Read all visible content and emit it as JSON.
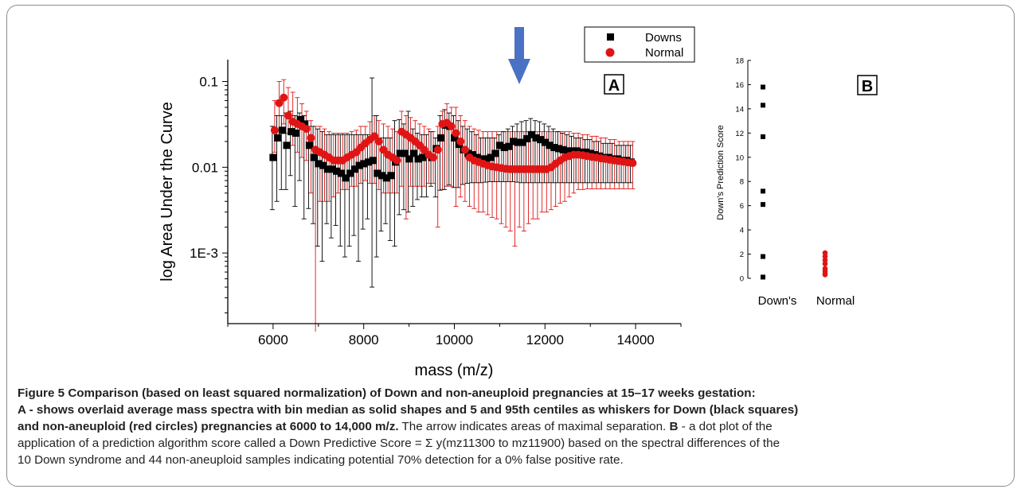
{
  "colors": {
    "downs": "#000000",
    "normal": "#e01414",
    "arrow": "#4a72c4",
    "accent_red": "#e01414"
  },
  "icons": {
    "arrow": "down-arrow-icon"
  },
  "chart_data": [
    {
      "type": "scatter",
      "panel_label": "A",
      "xlabel": "mass (m/z)",
      "ylabel": "log Area Under the Curve",
      "yscale": "log",
      "xlim": [
        5000,
        15000
      ],
      "ylim": [
        0.00015,
        0.18
      ],
      "x_ticks": [
        6000,
        8000,
        10000,
        12000,
        14000
      ],
      "x_tick_labels": [
        "6000",
        "8000",
        "10000",
        "12000",
        "14000"
      ],
      "y_ticks": [
        0.001,
        0.01,
        0.1
      ],
      "y_tick_labels": [
        "1E-3",
        "0.01",
        "0.1"
      ],
      "legend": {
        "position": "top-right",
        "entries": [
          "Downs",
          "Normal"
        ]
      },
      "arrow_at_x": 11300,
      "grid": false,
      "series": [
        {
          "name": "Downs",
          "marker": "square",
          "x": [
            6000,
            6100,
            6200,
            6300,
            6400,
            6500,
            6600,
            6700,
            6800,
            6900,
            7000,
            7100,
            7200,
            7300,
            7400,
            7500,
            7600,
            7700,
            7800,
            7900,
            8000,
            8100,
            8200,
            8300,
            8400,
            8500,
            8600,
            8700,
            8800,
            8900,
            9000,
            9100,
            9200,
            9300,
            9400,
            9500,
            9600,
            9700,
            9800,
            9900,
            10000,
            10100,
            10200,
            10300,
            10400,
            10500,
            10600,
            10700,
            10800,
            10900,
            11000,
            11100,
            11200,
            11300,
            11400,
            11500,
            11600,
            11700,
            11800,
            11900,
            12000,
            12100,
            12200,
            12300,
            12400,
            12500,
            12600,
            12700,
            12800,
            12900,
            13000,
            13100,
            13200,
            13300,
            13400,
            13500,
            13600,
            13700,
            13800,
            13900
          ],
          "median": [
            0.013,
            0.022,
            0.027,
            0.018,
            0.026,
            0.025,
            0.036,
            0.032,
            0.018,
            0.013,
            0.011,
            0.0105,
            0.0095,
            0.0095,
            0.009,
            0.0085,
            0.0075,
            0.0085,
            0.0095,
            0.0105,
            0.011,
            0.0115,
            0.012,
            0.0085,
            0.008,
            0.0075,
            0.008,
            0.0115,
            0.0145,
            0.0145,
            0.0125,
            0.0145,
            0.0125,
            0.013,
            0.014,
            0.013,
            0.0165,
            0.022,
            0.031,
            0.03,
            0.022,
            0.0185,
            0.016,
            0.0145,
            0.014,
            0.013,
            0.0125,
            0.0125,
            0.013,
            0.0145,
            0.018,
            0.017,
            0.0175,
            0.02,
            0.0195,
            0.0195,
            0.0215,
            0.024,
            0.022,
            0.021,
            0.0195,
            0.018,
            0.017,
            0.0165,
            0.016,
            0.0155,
            0.0155,
            0.0155,
            0.015,
            0.015,
            0.0145,
            0.014,
            0.0135,
            0.013,
            0.013,
            0.0125,
            0.0125,
            0.012,
            0.012,
            0.0115
          ],
          "p5": [
            0.0032,
            0.004,
            0.0055,
            0.0055,
            0.008,
            0.0035,
            0.007,
            0.0025,
            0.0033,
            0.0022,
            0.0012,
            0.0008,
            0.0022,
            0.0015,
            0.0021,
            0.0012,
            0.0009,
            0.0012,
            0.0016,
            0.0008,
            0.0019,
            0.0025,
            0.0004,
            0.0009,
            0.0018,
            0.0022,
            0.0014,
            0.0012,
            0.0028,
            0.0032,
            0.003,
            0.0035,
            0.0042,
            0.0045,
            0.0045,
            0.006,
            0.0045,
            0.0054,
            0.0055,
            0.0062,
            0.0058,
            0.0058,
            0.0063,
            0.0065,
            0.0066,
            0.0066,
            0.0066,
            0.0067,
            0.0068,
            0.0068,
            0.0068,
            0.0068,
            0.0068,
            0.0068,
            0.0067,
            0.0066,
            0.0066,
            0.0066,
            0.0066,
            0.0066,
            0.0066,
            0.0066,
            0.0066,
            0.0066,
            0.0066,
            0.0066,
            0.0066,
            0.0066,
            0.0066,
            0.0066,
            0.0066,
            0.0066,
            0.0066,
            0.0066,
            0.0066,
            0.0066,
            0.0066,
            0.0066,
            0.0066,
            0.0066
          ],
          "p95": [
            0.03,
            0.04,
            0.04,
            0.043,
            0.045,
            0.04,
            0.043,
            0.04,
            0.03,
            0.03,
            0.028,
            0.026,
            0.024,
            0.024,
            0.024,
            0.024,
            0.024,
            0.024,
            0.024,
            0.024,
            0.024,
            0.024,
            0.11,
            0.04,
            0.022,
            0.022,
            0.022,
            0.035,
            0.036,
            0.032,
            0.045,
            0.028,
            0.025,
            0.024,
            0.024,
            0.026,
            0.022,
            0.04,
            0.047,
            0.043,
            0.04,
            0.035,
            0.03,
            0.028,
            0.026,
            0.024,
            0.022,
            0.022,
            0.022,
            0.022,
            0.024,
            0.026,
            0.028,
            0.03,
            0.032,
            0.034,
            0.035,
            0.037,
            0.035,
            0.034,
            0.032,
            0.03,
            0.028,
            0.026,
            0.025,
            0.024,
            0.023,
            0.022,
            0.022,
            0.021,
            0.021,
            0.02,
            0.02,
            0.019,
            0.019,
            0.019,
            0.018,
            0.018,
            0.018,
            0.018
          ]
        },
        {
          "name": "Normal",
          "marker": "circle",
          "x": [
            6000,
            6100,
            6200,
            6300,
            6400,
            6500,
            6600,
            6700,
            6800,
            6900,
            7000,
            7100,
            7200,
            7300,
            7400,
            7500,
            7600,
            7700,
            7800,
            7900,
            8000,
            8100,
            8200,
            8300,
            8400,
            8500,
            8600,
            8700,
            8800,
            8900,
            9000,
            9100,
            9200,
            9300,
            9400,
            9500,
            9600,
            9700,
            9800,
            9900,
            10000,
            10100,
            10200,
            10300,
            10400,
            10500,
            10600,
            10700,
            10800,
            10900,
            11000,
            11100,
            11200,
            11300,
            11400,
            11500,
            11600,
            11700,
            11800,
            11900,
            12000,
            12100,
            12200,
            12300,
            12400,
            12500,
            12600,
            12700,
            12800,
            12900,
            13000,
            13100,
            13200,
            13300,
            13400,
            13500,
            13600,
            13700,
            13800,
            13900
          ],
          "median": [
            0.027,
            0.056,
            0.065,
            0.04,
            0.034,
            0.032,
            0.03,
            0.028,
            0.022,
            0.016,
            0.015,
            0.014,
            0.013,
            0.012,
            0.012,
            0.012,
            0.013,
            0.014,
            0.015,
            0.017,
            0.019,
            0.021,
            0.023,
            0.02,
            0.016,
            0.014,
            0.013,
            0.012,
            0.026,
            0.024,
            0.022,
            0.02,
            0.018,
            0.016,
            0.014,
            0.013,
            0.016,
            0.032,
            0.033,
            0.03,
            0.025,
            0.02,
            0.016,
            0.013,
            0.012,
            0.0115,
            0.011,
            0.0105,
            0.0102,
            0.01,
            0.0098,
            0.0096,
            0.0095,
            0.0095,
            0.0095,
            0.0095,
            0.0095,
            0.0095,
            0.0095,
            0.0095,
            0.0095,
            0.01,
            0.011,
            0.012,
            0.013,
            0.0135,
            0.014,
            0.014,
            0.0138,
            0.0135,
            0.0132,
            0.013,
            0.0127,
            0.0125,
            0.0122,
            0.012,
            0.0118,
            0.0116,
            0.0114,
            0.0112
          ],
          "p5": [
            0.015,
            0.022,
            0.032,
            0.025,
            0.018,
            0.015,
            0.013,
            0.012,
            0.005,
            0.00012,
            0.004,
            0.004,
            0.004,
            0.0045,
            0.005,
            0.0055,
            0.0055,
            0.006,
            0.006,
            0.0065,
            0.007,
            0.0065,
            0.0065,
            0.0055,
            0.005,
            0.005,
            0.005,
            0.005,
            0.006,
            0.0025,
            0.006,
            0.006,
            0.006,
            0.006,
            0.0065,
            0.0065,
            0.002,
            0.0055,
            0.006,
            0.006,
            0.0035,
            0.0045,
            0.004,
            0.0035,
            0.0033,
            0.003,
            0.003,
            0.0028,
            0.0026,
            0.0025,
            0.0022,
            0.002,
            0.0018,
            0.0012,
            0.002,
            0.0018,
            0.0022,
            0.0025,
            0.0025,
            0.003,
            0.003,
            0.0032,
            0.0035,
            0.0038,
            0.004,
            0.0045,
            0.005,
            0.0055,
            0.0055,
            0.0056,
            0.0056,
            0.0056,
            0.0056,
            0.0056,
            0.0056,
            0.0056,
            0.0056,
            0.0056,
            0.0056,
            0.0056
          ],
          "p95": [
            0.06,
            0.1,
            0.105,
            0.085,
            0.075,
            0.065,
            0.055,
            0.045,
            0.035,
            0.03,
            0.03,
            0.028,
            0.026,
            0.025,
            0.025,
            0.025,
            0.025,
            0.026,
            0.027,
            0.03,
            0.03,
            0.034,
            0.04,
            0.035,
            0.032,
            0.03,
            0.028,
            0.026,
            0.045,
            0.04,
            0.038,
            0.035,
            0.032,
            0.03,
            0.028,
            0.026,
            0.03,
            0.045,
            0.055,
            0.05,
            0.05,
            0.04,
            0.035,
            0.03,
            0.028,
            0.027,
            0.026,
            0.026,
            0.026,
            0.026,
            0.026,
            0.026,
            0.026,
            0.026,
            0.026,
            0.026,
            0.026,
            0.026,
            0.026,
            0.026,
            0.026,
            0.026,
            0.026,
            0.026,
            0.026,
            0.026,
            0.025,
            0.025,
            0.024,
            0.024,
            0.023,
            0.023,
            0.022,
            0.022,
            0.021,
            0.021,
            0.02,
            0.02,
            0.02,
            0.02
          ]
        }
      ]
    },
    {
      "type": "scatter",
      "panel_label": "B",
      "ylabel": "Down's Prediction Score",
      "ylim": [
        0,
        18
      ],
      "y_ticks": [
        0,
        2,
        4,
        6,
        8,
        10,
        12,
        14,
        16,
        18
      ],
      "y_tick_labels": [
        "0",
        "2",
        "4",
        "6",
        "8",
        "10",
        "12",
        "14",
        "16",
        "18"
      ],
      "categories": [
        "Down's",
        "Normal"
      ],
      "series": [
        {
          "category": "Down's",
          "marker": "square",
          "values": [
            15.8,
            14.3,
            11.7,
            7.2,
            6.1,
            1.8,
            0.1
          ]
        },
        {
          "category": "Normal",
          "marker": "circle",
          "values": [
            2.1,
            1.8,
            1.5,
            1.2,
            0.8,
            0.6,
            0.4,
            0.3
          ]
        }
      ]
    }
  ],
  "caption": {
    "figure_label": "Figure 5",
    "bold_line1": "Comparison (based on least squared normalization) of Down and non-aneuploid pregnancies at 15–17 weeks gestation:",
    "bold_line2": "A - shows overlaid average mass spectra with bin median as solid shapes and 5 and 95th centiles as whiskers for Down (black squares)",
    "bold_line3": "and non-aneuploid (red circles) pregnancies at 6000 to 14,000 m/z.",
    "normal_line3": "The arrow indicates areas of maximal separation.",
    "label_b": "B",
    "normal_line4": "- a dot plot of the",
    "normal_line5": "application of a prediction algorithm score called a Down Predictive Score = Σ y(mz11300 to mz11900) based on the spectral differences of the",
    "normal_line6": "10 Down syndrome and 44 non-aneuploid samples indicating potential 70% detection for a 0% false positive rate."
  }
}
